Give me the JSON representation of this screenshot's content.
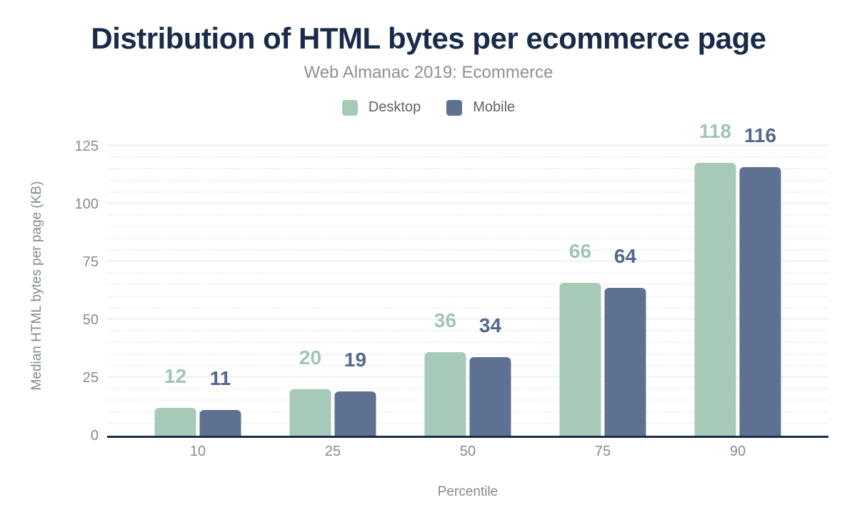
{
  "chart_data": {
    "type": "bar",
    "title": "Distribution of HTML bytes per ecommerce page",
    "subtitle": "Web Almanac 2019: Ecommerce",
    "categories": [
      "10",
      "25",
      "50",
      "75",
      "90"
    ],
    "series": [
      {
        "name": "Desktop",
        "color": "#a6c9b8",
        "label_color": "#a0c6b3",
        "values": [
          12,
          20,
          36,
          66,
          118
        ]
      },
      {
        "name": "Mobile",
        "color": "#5e7190",
        "label_color": "#54678c",
        "values": [
          11,
          19,
          34,
          64,
          116
        ]
      }
    ],
    "xlabel": "Percentile",
    "ylabel": "Median HTML bytes per page (KB)",
    "ylim": [
      0,
      125
    ],
    "ytick_step": 25,
    "yminor_step": 5,
    "ytick_labels": [
      "0",
      "25",
      "50",
      "75",
      "100",
      "125"
    ],
    "grid": true,
    "legend_position": "top"
  },
  "colors": {
    "ink": "#1a2b49",
    "muted": "#848b92"
  }
}
